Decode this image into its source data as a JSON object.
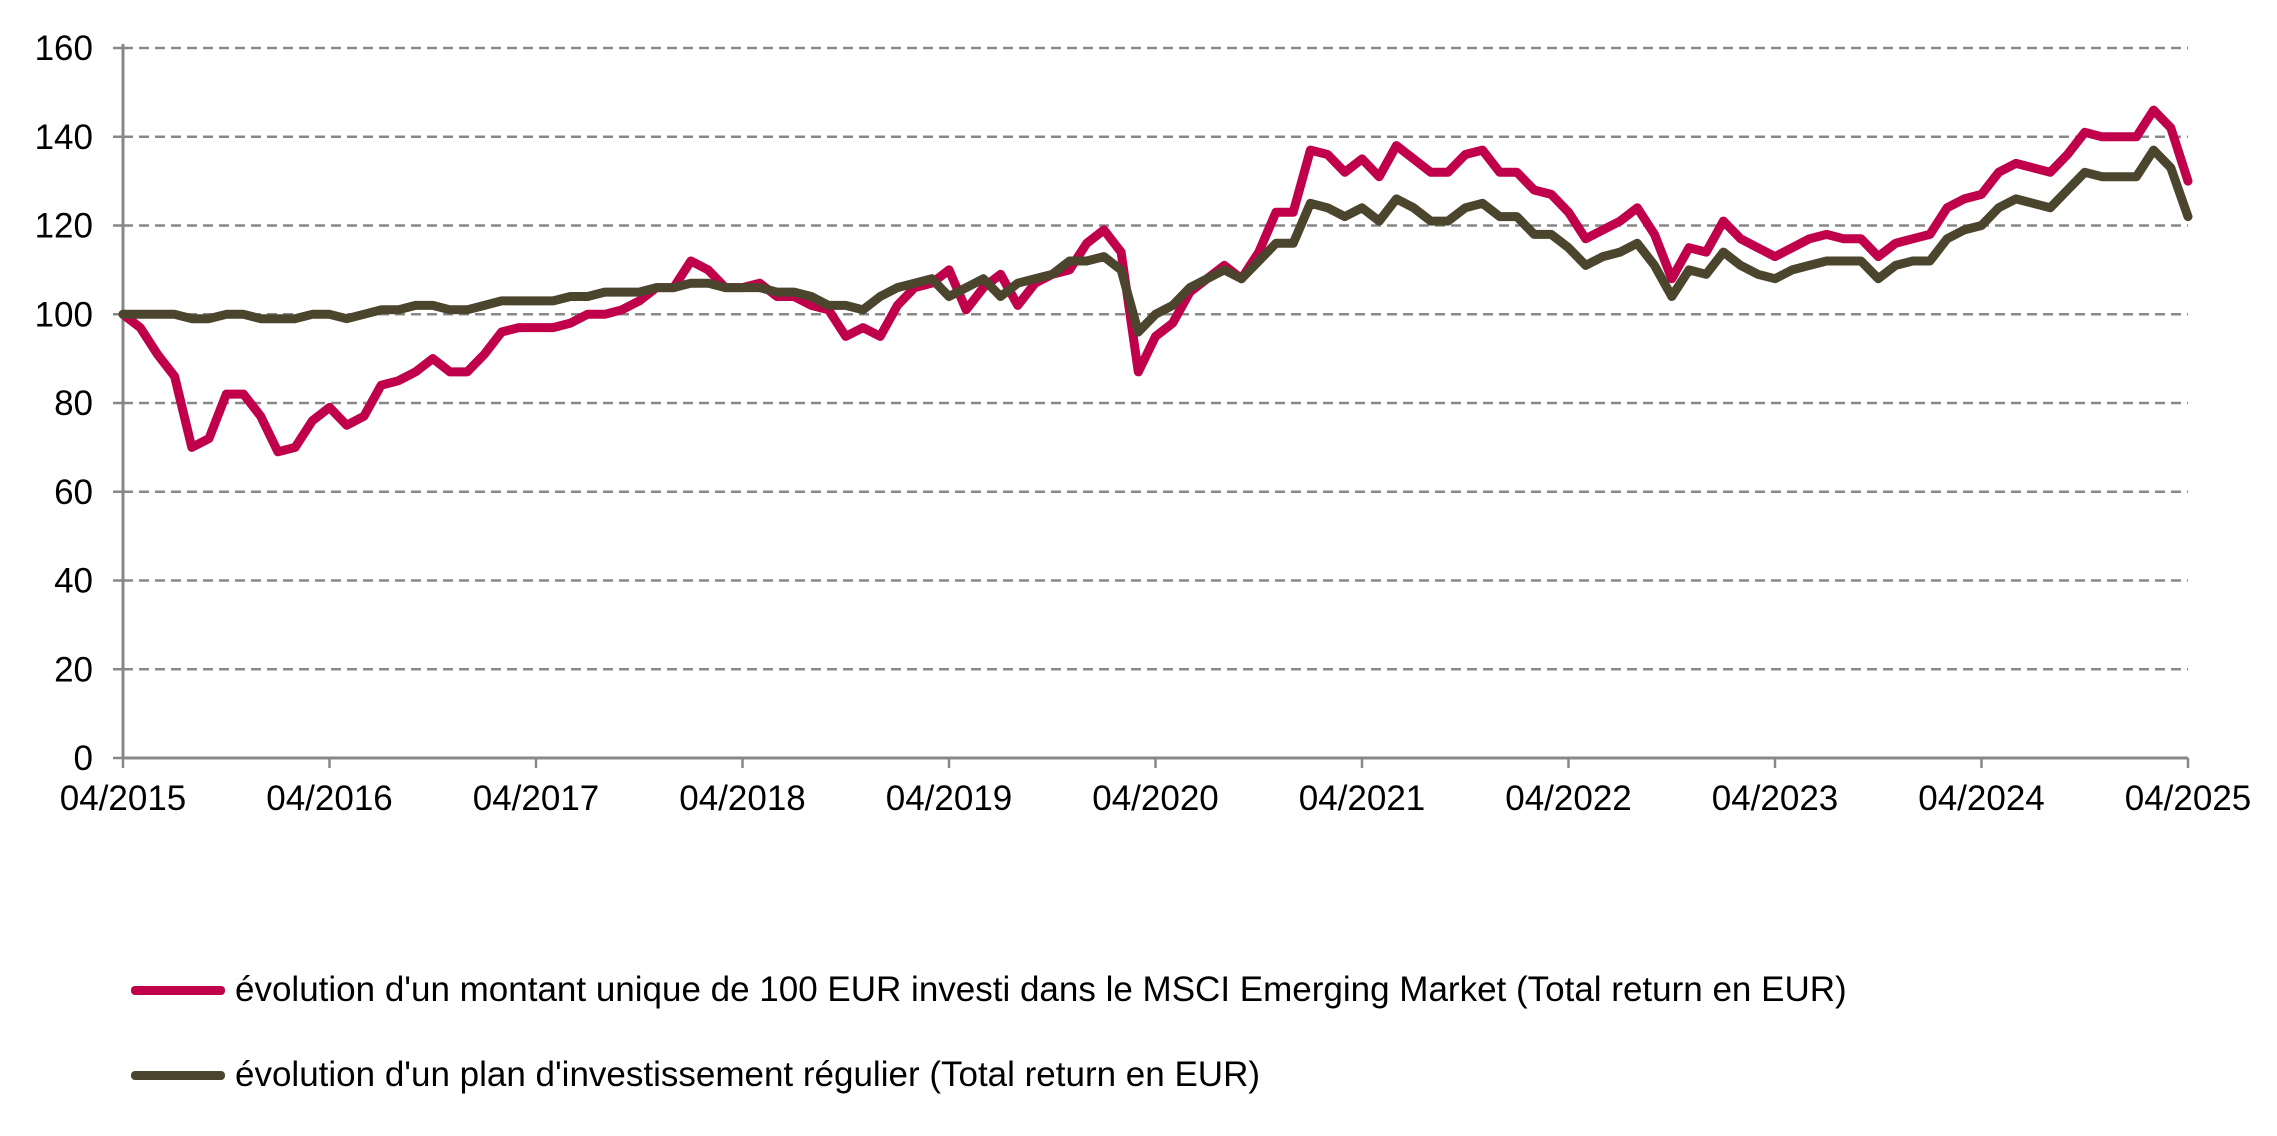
{
  "chart_data": {
    "type": "line",
    "title": "",
    "xlabel": "",
    "ylabel": "",
    "ylim": [
      0,
      160
    ],
    "yticks": [
      "0",
      "20",
      "40",
      "60",
      "80",
      "100",
      "120",
      "140",
      "160"
    ],
    "xticks": [
      "04/2015",
      "04/2016",
      "04/2017",
      "04/2018",
      "04/2019",
      "04/2020",
      "04/2021",
      "04/2022",
      "04/2023",
      "04/2024",
      "04/2025"
    ],
    "x_start": "04/2015",
    "x_frequency": "monthly",
    "grid": "horizontal dashed",
    "legend_position": "bottom",
    "series": [
      {
        "name": "évolution d'un montant unique de 100 EUR investi dans le MSCI Emerging Market (Total return en EUR)",
        "color": "#C0004B",
        "values": [
          100,
          97,
          91,
          86,
          70,
          72,
          82,
          82,
          77,
          69,
          70,
          76,
          79,
          75,
          77,
          84,
          85,
          87,
          90,
          87,
          87,
          91,
          96,
          97,
          97,
          97,
          98,
          100,
          100,
          101,
          103,
          106,
          106,
          112,
          110,
          106,
          106,
          107,
          104,
          104,
          102,
          101,
          95,
          97,
          95,
          102,
          106,
          107,
          110,
          101,
          106,
          109,
          102,
          107,
          109,
          110,
          116,
          119,
          114,
          87,
          95,
          98,
          105,
          108,
          111,
          108,
          114,
          123,
          123,
          137,
          136,
          132,
          135,
          131,
          138,
          135,
          132,
          132,
          136,
          137,
          132,
          132,
          128,
          127,
          123,
          117,
          119,
          121,
          124,
          118,
          108,
          115,
          114,
          121,
          117,
          115,
          113,
          115,
          117,
          118,
          117,
          117,
          113,
          116,
          117,
          118,
          124,
          126,
          127,
          132,
          134,
          133,
          132,
          136,
          141,
          140,
          140,
          140,
          146,
          142,
          130
        ]
      },
      {
        "name": "évolution d'un plan d'investissement régulier (Total return en EUR)",
        "color": "#4B452D",
        "values": [
          100,
          100,
          100,
          100,
          99,
          99,
          100,
          100,
          99,
          99,
          99,
          100,
          100,
          99,
          100,
          101,
          101,
          102,
          102,
          101,
          101,
          102,
          103,
          103,
          103,
          103,
          104,
          104,
          105,
          105,
          105,
          106,
          106,
          107,
          107,
          106,
          106,
          106,
          105,
          105,
          104,
          102,
          102,
          101,
          104,
          106,
          107,
          108,
          104,
          106,
          108,
          104,
          107,
          108,
          109,
          112,
          112,
          113,
          110,
          96,
          100,
          102,
          106,
          108,
          110,
          108,
          112,
          116,
          116,
          125,
          124,
          122,
          124,
          121,
          126,
          124,
          121,
          121,
          124,
          125,
          122,
          122,
          118,
          118,
          115,
          111,
          113,
          114,
          116,
          111,
          104,
          110,
          109,
          114,
          111,
          109,
          108,
          110,
          111,
          112,
          112,
          112,
          108,
          111,
          112,
          112,
          117,
          119,
          120,
          124,
          126,
          125,
          124,
          128,
          132,
          131,
          131,
          131,
          137,
          133,
          122
        ]
      }
    ]
  }
}
